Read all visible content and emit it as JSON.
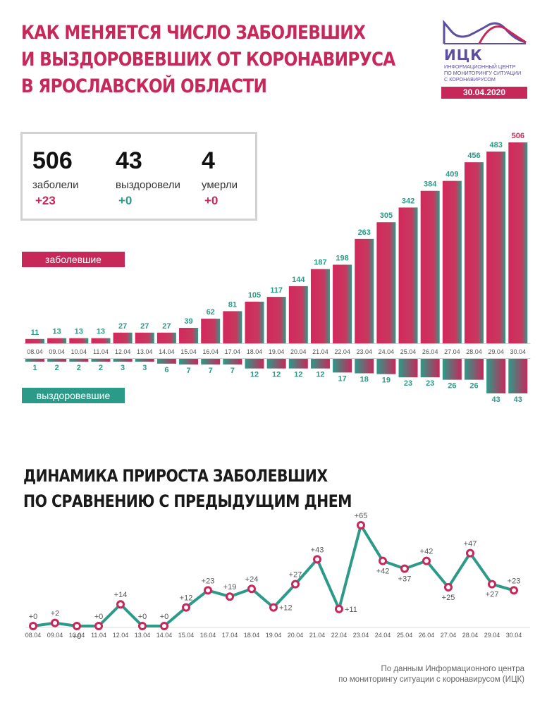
{
  "title_lines": [
    "Как меняется число заболевших",
    "и выздоровевших от коронавируса",
    "в Ярославской области"
  ],
  "logo": {
    "name": "ИЦК",
    "subtitle_lines": [
      "Информационный центр",
      "по мониторингу ситуации",
      "с коронавирусом"
    ],
    "date": "30.04.2020"
  },
  "stats": [
    {
      "value": "506",
      "label": "заболели",
      "delta": "+23",
      "color": "#c7285a"
    },
    {
      "value": "43",
      "label": "выздоровели",
      "delta": "+0",
      "color": "#2c9a88"
    },
    {
      "value": "4",
      "label": "умерли",
      "delta": "+0",
      "color": "#c7285a"
    }
  ],
  "legend": {
    "cases": "заболевшие",
    "recovered": "выздоровевшие"
  },
  "heading2_lines": [
    "Динамика прироста заболевших",
    "по сравнению с предыдущим днем"
  ],
  "source_lines": [
    "По данным Информационного центра",
    "по мониторингу ситуации с коронавирусом (ИЦК)"
  ],
  "colors": {
    "pink": "#c7285a",
    "teal": "#2c9a88"
  },
  "chart_data": [
    {
      "type": "bar",
      "categories": [
        "08.04",
        "09.04",
        "10.04",
        "11.04",
        "12.04",
        "13.04",
        "14.04",
        "15.04",
        "16.04",
        "17.04",
        "18.04",
        "19.04",
        "20.04",
        "21.04",
        "22.04",
        "23.04",
        "24.04",
        "25.04",
        "26.04",
        "27.04",
        "28.04",
        "29.04",
        "30.04"
      ],
      "series": [
        {
          "name": "заболевшие",
          "values": [
            11,
            13,
            13,
            13,
            27,
            27,
            27,
            39,
            62,
            81,
            105,
            117,
            144,
            187,
            198,
            263,
            305,
            342,
            384,
            409,
            456,
            483,
            506
          ]
        },
        {
          "name": "выздоровевшие",
          "values": [
            1,
            2,
            2,
            2,
            3,
            3,
            6,
            7,
            7,
            7,
            12,
            12,
            12,
            12,
            17,
            18,
            19,
            23,
            23,
            26,
            26,
            43,
            43
          ]
        }
      ]
    },
    {
      "type": "line",
      "title": "Динамика прироста заболевших по сравнению с предыдущим днем",
      "categories": [
        "08.04",
        "09.04",
        "10.04",
        "11.04",
        "12.04",
        "13.04",
        "14.04",
        "15.04",
        "16.04",
        "17.04",
        "18.04",
        "19.04",
        "20.04",
        "21.04",
        "22.04",
        "23.04",
        "24.04",
        "25.04",
        "26.04",
        "27.04",
        "28.04",
        "29.04",
        "30.04"
      ],
      "values": [
        0,
        2,
        0,
        0,
        14,
        0,
        0,
        12,
        23,
        19,
        24,
        12,
        27,
        43,
        11,
        65,
        42,
        37,
        42,
        25,
        47,
        27,
        23
      ],
      "labels": [
        "+0",
        "+2",
        "+0",
        "+0",
        "+14",
        "+0",
        "+0",
        "+12",
        "+23",
        "+19",
        "+24",
        "+12",
        "+27",
        "+43",
        "+11",
        "+65",
        "+42",
        "+37",
        "+42",
        "+25",
        "+47",
        "+27",
        "+23"
      ]
    }
  ]
}
